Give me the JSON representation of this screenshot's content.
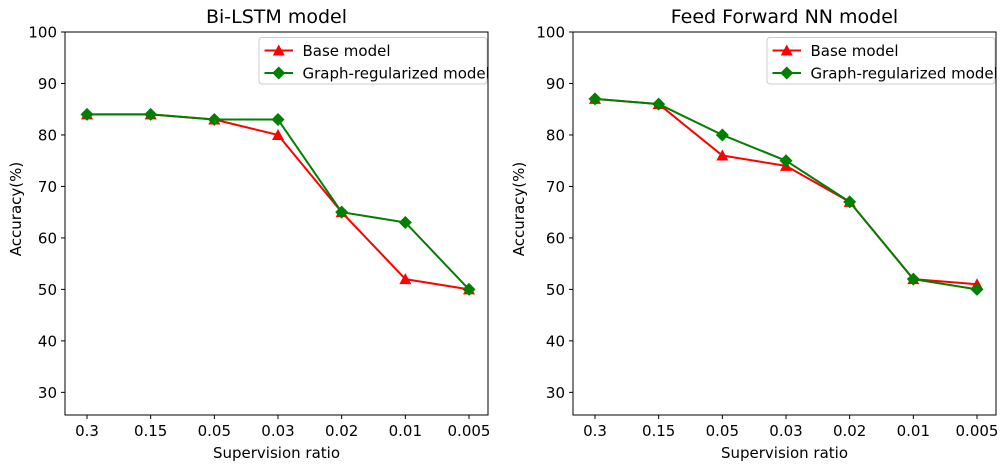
{
  "figure": {
    "background": "#ffffff"
  },
  "chart_data": [
    {
      "type": "line",
      "title": "Bi-LSTM model",
      "xlabel": "Supervision ratio",
      "ylabel": "Accuracy(%)",
      "categories": [
        "0.3",
        "0.15",
        "0.05",
        "0.03",
        "0.02",
        "0.01",
        "0.005"
      ],
      "yticks": [
        100,
        90,
        80,
        70,
        60,
        50,
        40,
        30
      ],
      "ylim": [
        25.6,
        100
      ],
      "grid": false,
      "legend_position": "upper-right",
      "series": [
        {
          "name": "Base model",
          "color": "#ff0000",
          "marker": "triangle-up",
          "values": [
            84,
            84,
            83,
            80,
            65,
            52,
            50
          ]
        },
        {
          "name": "Graph-regularized model",
          "color": "#008000",
          "marker": "diamond",
          "values": [
            84,
            84,
            83,
            83,
            65,
            63,
            50
          ]
        }
      ]
    },
    {
      "type": "line",
      "title": "Feed Forward NN model",
      "xlabel": "Supervision ratio",
      "ylabel": "Accuracy(%)",
      "categories": [
        "0.3",
        "0.15",
        "0.05",
        "0.03",
        "0.02",
        "0.01",
        "0.005"
      ],
      "yticks": [
        100,
        90,
        80,
        70,
        60,
        50,
        40,
        30
      ],
      "ylim": [
        25.6,
        100
      ],
      "grid": false,
      "legend_position": "upper-right",
      "series": [
        {
          "name": "Base model",
          "color": "#ff0000",
          "marker": "triangle-up",
          "values": [
            87,
            86,
            76,
            74,
            67,
            52,
            51
          ]
        },
        {
          "name": "Graph-regularized model",
          "color": "#008000",
          "marker": "diamond",
          "values": [
            87,
            86,
            80,
            75,
            67,
            52,
            50
          ]
        }
      ]
    }
  ]
}
